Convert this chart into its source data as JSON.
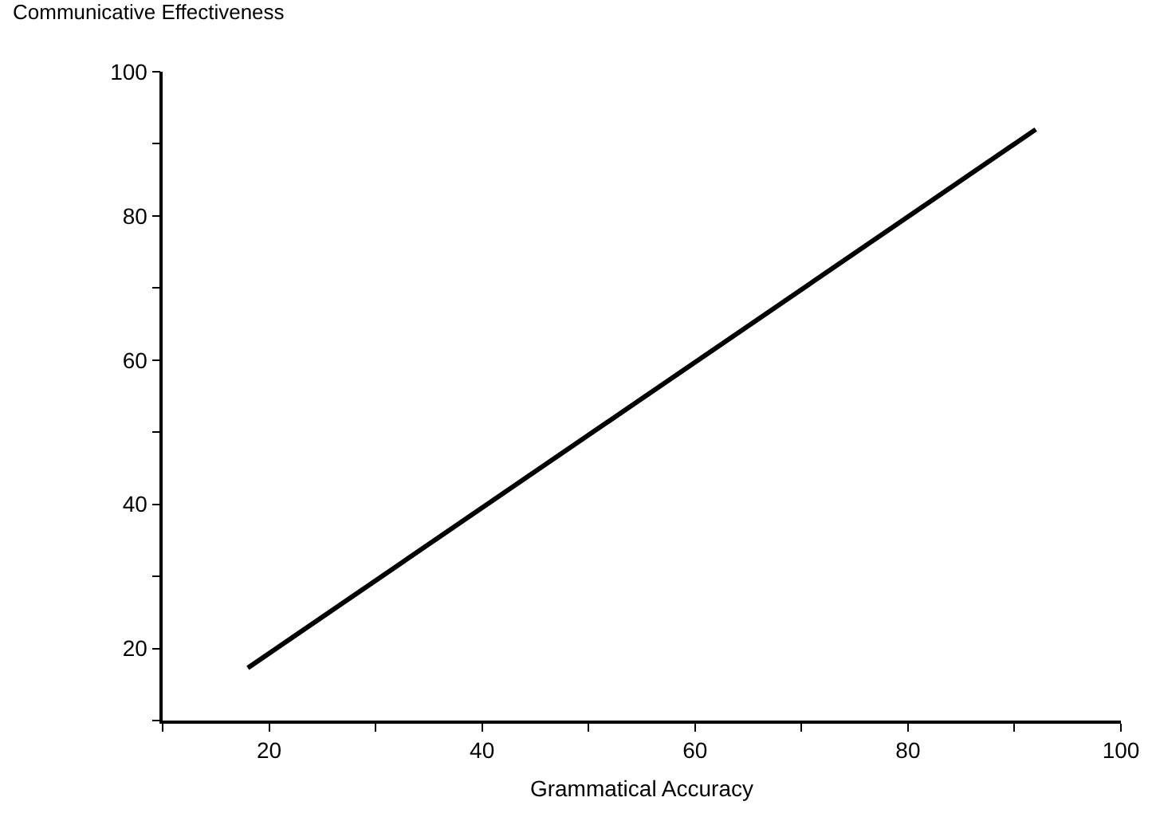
{
  "chart_data": {
    "type": "line",
    "xlabel": "Grammatical Accuracy",
    "ylabel": "Communicative Effectiveness",
    "x": [
      18,
      92
    ],
    "series": [
      {
        "color": "#000000",
        "values": [
          17.3,
          92
        ]
      }
    ],
    "xlim": [
      10,
      100
    ],
    "ylim": [
      10,
      100
    ],
    "xticks": [
      {
        "value": 10,
        "label": null
      },
      20,
      {
        "value": 30,
        "label": null
      },
      40,
      {
        "value": 50,
        "label": null
      },
      60,
      {
        "value": 70,
        "label": null
      },
      80,
      {
        "value": 90,
        "label": null
      },
      100
    ],
    "yticks": [
      {
        "value": 10,
        "label": null
      },
      20,
      {
        "value": 30,
        "label": null
      },
      40,
      {
        "value": 50,
        "label": null
      },
      60,
      {
        "value": 70,
        "label": null
      },
      80,
      {
        "value": 90,
        "label": null
      },
      100
    ],
    "grid": false,
    "marker": "none",
    "line_style": "solid"
  }
}
